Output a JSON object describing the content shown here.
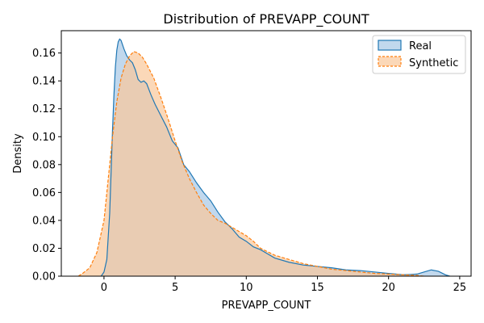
{
  "chart_data": {
    "type": "area",
    "title": "Distribution of PREVAPP_COUNT",
    "xlabel": "PREVAPP_COUNT",
    "ylabel": "Density",
    "xlim": [
      -3.0,
      25.8
    ],
    "ylim": [
      0,
      0.176
    ],
    "xticks": [
      0,
      5,
      10,
      15,
      20,
      25
    ],
    "yticks": [
      0.0,
      0.02,
      0.04,
      0.06,
      0.08,
      0.1,
      0.12,
      0.14,
      0.16
    ],
    "legend_position": "top-right",
    "grid": false,
    "series": [
      {
        "name": "Real",
        "color": "#1f77b4",
        "fill": "#a6c8e6",
        "line_style": "solid",
        "x": [
          -0.2,
          0.0,
          0.2,
          0.4,
          0.5,
          0.6,
          0.7,
          0.8,
          0.9,
          1.0,
          1.1,
          1.2,
          1.4,
          1.6,
          1.8,
          2.0,
          2.2,
          2.4,
          2.6,
          2.8,
          3.0,
          3.3,
          3.6,
          4.0,
          4.4,
          4.8,
          5.2,
          5.6,
          6.0,
          6.5,
          7.0,
          7.5,
          8.0,
          8.5,
          9.0,
          9.5,
          10.0,
          10.5,
          11.0,
          11.5,
          12.0,
          13.0,
          14.0,
          15.0,
          16.0,
          17.0,
          18.0,
          19.0,
          20.0,
          21.0,
          21.5,
          22.0,
          22.5,
          23.0,
          23.5,
          24.0,
          24.3
        ],
        "values": [
          0.0,
          0.003,
          0.012,
          0.045,
          0.075,
          0.105,
          0.13,
          0.15,
          0.162,
          0.168,
          0.17,
          0.169,
          0.163,
          0.158,
          0.155,
          0.153,
          0.148,
          0.141,
          0.139,
          0.14,
          0.138,
          0.13,
          0.123,
          0.115,
          0.107,
          0.097,
          0.092,
          0.08,
          0.075,
          0.067,
          0.06,
          0.054,
          0.046,
          0.039,
          0.034,
          0.028,
          0.025,
          0.021,
          0.019,
          0.016,
          0.013,
          0.01,
          0.008,
          0.007,
          0.006,
          0.0045,
          0.004,
          0.003,
          0.002,
          0.001,
          0.0012,
          0.0015,
          0.003,
          0.0045,
          0.0035,
          0.001,
          0.0
        ]
      },
      {
        "name": "Synthetic",
        "color": "#ff7f0e",
        "fill": "#f9c89a",
        "line_style": "dashed",
        "x": [
          -1.8,
          -1.5,
          -1.0,
          -0.5,
          0.0,
          0.3,
          0.6,
          0.9,
          1.2,
          1.5,
          1.8,
          2.1,
          2.4,
          2.7,
          3.0,
          3.5,
          4.0,
          4.5,
          5.0,
          5.5,
          6.0,
          6.5,
          7.0,
          7.5,
          8.0,
          8.5,
          9.0,
          9.5,
          10.0,
          10.5,
          11.0,
          12.0,
          13.0,
          14.0,
          15.0,
          16.0,
          17.0,
          18.0,
          19.0,
          20.0,
          21.0,
          22.0,
          22.5
        ],
        "values": [
          0.0,
          0.002,
          0.006,
          0.017,
          0.04,
          0.07,
          0.1,
          0.125,
          0.142,
          0.152,
          0.158,
          0.161,
          0.16,
          0.157,
          0.152,
          0.142,
          0.128,
          0.113,
          0.097,
          0.082,
          0.07,
          0.06,
          0.051,
          0.045,
          0.04,
          0.038,
          0.035,
          0.032,
          0.029,
          0.025,
          0.02,
          0.015,
          0.012,
          0.009,
          0.007,
          0.005,
          0.004,
          0.003,
          0.002,
          0.0015,
          0.001,
          0.0005,
          0.0
        ]
      }
    ]
  }
}
